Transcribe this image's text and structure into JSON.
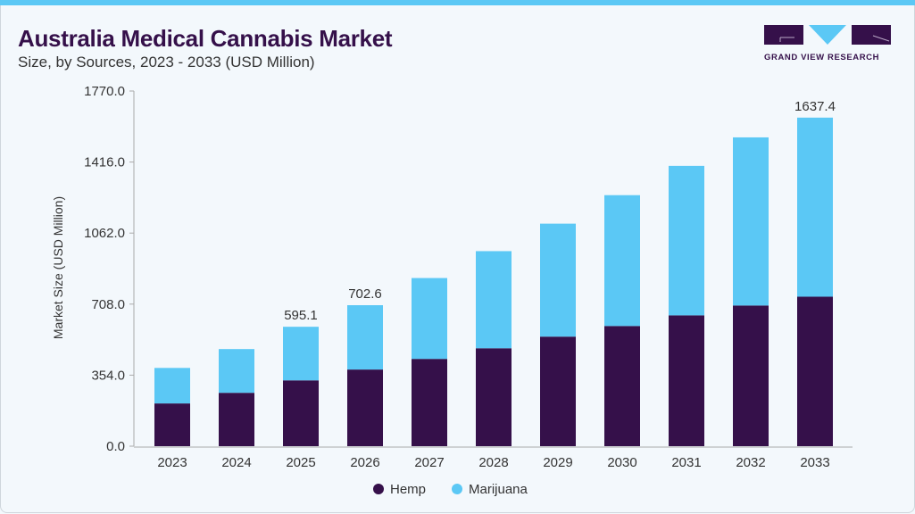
{
  "header": {
    "title": "Australia Medical Cannabis Market",
    "subtitle": "Size, by Sources, 2023 - 2033 (USD Million)",
    "logo_text": "GRAND VIEW RESEARCH"
  },
  "chart_data": {
    "type": "bar",
    "stacked": true,
    "title": "Australia Medical Cannabis Market",
    "subtitle": "Size, by Sources, 2023 - 2033 (USD Million)",
    "xlabel": "",
    "ylabel": "Market Size (USD Million)",
    "ylim": [
      0,
      1770
    ],
    "yticks": [
      "0.0",
      "354.0",
      "708.0",
      "1062.0",
      "1416.0",
      "1770.0"
    ],
    "categories": [
      "2023",
      "2024",
      "2025",
      "2026",
      "2027",
      "2028",
      "2029",
      "2030",
      "2031",
      "2032",
      "2033"
    ],
    "series": [
      {
        "name": "Hemp",
        "color": "#35104a",
        "values": [
          213,
          266,
          328,
          382,
          435,
          488,
          546,
          599,
          652,
          701,
          745
        ]
      },
      {
        "name": "Marijuana",
        "color": "#5bc8f5",
        "values": [
          177,
          218,
          267.1,
          320.6,
          403,
          484,
          563,
          652,
          745,
          838,
          892.4
        ]
      }
    ],
    "data_labels": {
      "2025": "595.1",
      "2026": "702.6",
      "2033": "1637.4"
    },
    "legend_position": "bottom",
    "grid": false
  }
}
